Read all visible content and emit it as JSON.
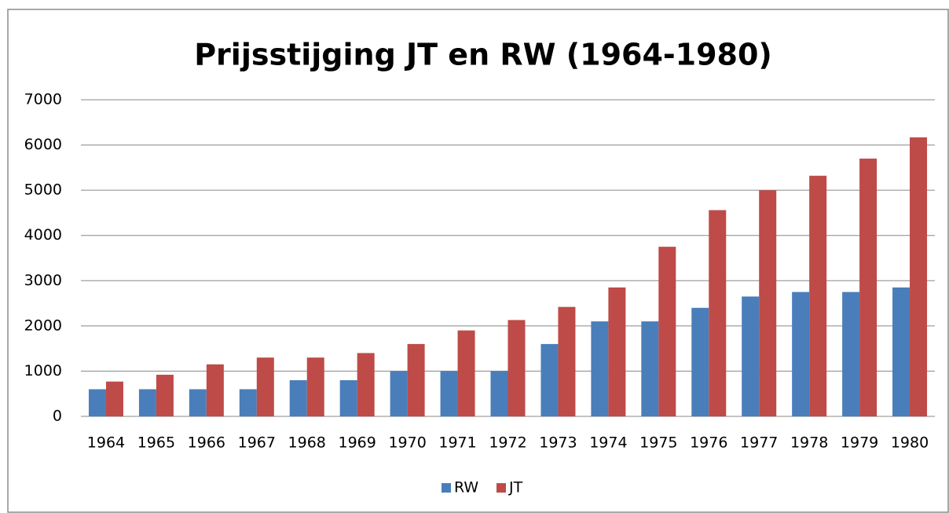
{
  "chart_data": {
    "type": "bar",
    "title": "Prijsstijging JT en RW (1964-1980)",
    "categories": [
      "1964",
      "1965",
      "1966",
      "1967",
      "1968",
      "1969",
      "1970",
      "1971",
      "1972",
      "1973",
      "1974",
      "1975",
      "1976",
      "1977",
      "1978",
      "1979",
      "1980"
    ],
    "series": [
      {
        "name": "RW",
        "color": "#4a7ebb",
        "values": [
          600,
          600,
          600,
          600,
          800,
          800,
          1000,
          1000,
          1000,
          1600,
          2100,
          2100,
          2400,
          2650,
          2750,
          2750,
          2850
        ]
      },
      {
        "name": "JT",
        "color": "#be4b48",
        "values": [
          770,
          920,
          1150,
          1300,
          1300,
          1400,
          1600,
          1900,
          2130,
          2420,
          2850,
          3750,
          4560,
          5000,
          5320,
          5700,
          6170
        ]
      }
    ],
    "ylim": [
      0,
      7000
    ],
    "yticks": [
      0,
      1000,
      2000,
      3000,
      4000,
      5000,
      6000,
      7000
    ],
    "grid": true,
    "legend": "bottom"
  }
}
